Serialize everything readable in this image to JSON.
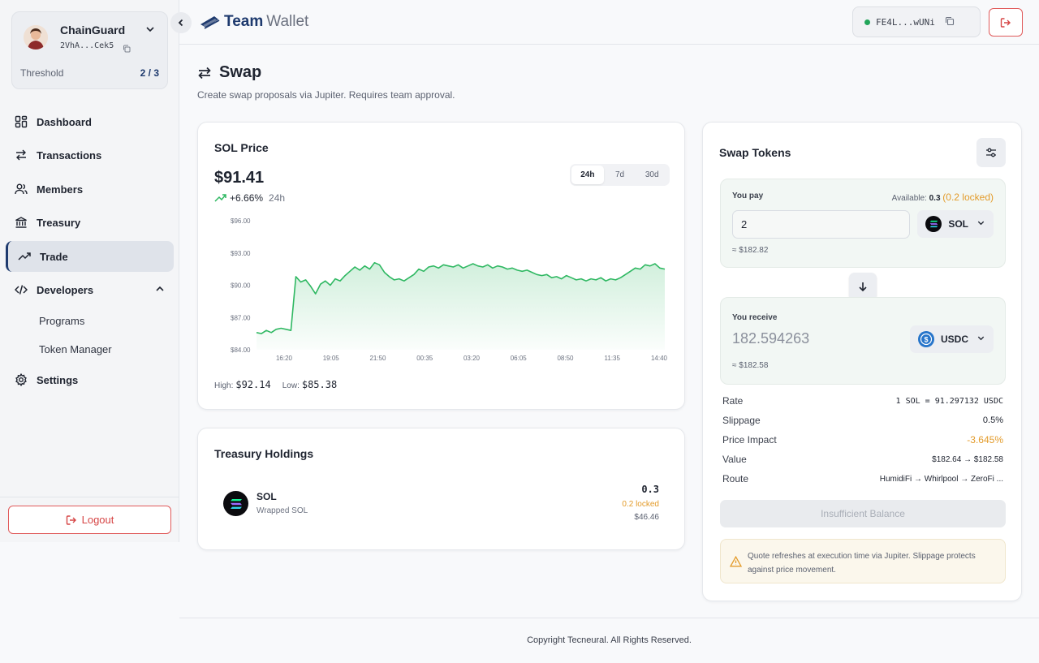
{
  "account": {
    "name": "ChainGuard",
    "address": "2VhA...Cek5",
    "threshold_label": "Threshold",
    "threshold_value": "2 / 3"
  },
  "nav": {
    "dashboard": "Dashboard",
    "transactions": "Transactions",
    "members": "Members",
    "treasury": "Treasury",
    "trade": "Trade",
    "developers": "Developers",
    "programs": "Programs",
    "token_manager": "Token Manager",
    "settings": "Settings",
    "logout": "Logout"
  },
  "header": {
    "brand_bold": "Team",
    "brand_light": "Wallet",
    "wallet_address": "FE4L...wUNi"
  },
  "page": {
    "title": "Swap",
    "subtitle": "Create swap proposals via Jupiter. Requires team approval."
  },
  "price_card": {
    "title": "SOL Price",
    "price": "$91.41",
    "change": "+6.66%",
    "period": "24h",
    "ranges": [
      "24h",
      "7d",
      "30d"
    ],
    "active_range": "24h",
    "high_label": "High:",
    "high": "$92.14",
    "low_label": "Low:",
    "low": "$85.38"
  },
  "chart_data": {
    "type": "area",
    "title": "",
    "xlabel": "",
    "ylabel": "",
    "ylim": [
      84,
      96
    ],
    "y_ticks": [
      "$96.00",
      "$93.00",
      "$90.00",
      "$87.00",
      "$84.00"
    ],
    "x_ticks": [
      "16:20",
      "19:05",
      "21:50",
      "00:35",
      "03:20",
      "06:05",
      "08:50",
      "11:35",
      "14:40"
    ],
    "series": [
      {
        "color": "#2fb862",
        "values": [
          85.6,
          85.5,
          85.8,
          85.6,
          85.9,
          86.0,
          85.9,
          85.8,
          90.8,
          90.3,
          90.5,
          89.9,
          89.2,
          90.1,
          90.4,
          90.0,
          90.6,
          90.4,
          90.9,
          91.3,
          91.7,
          91.4,
          91.8,
          91.5,
          92.1,
          91.9,
          91.2,
          90.8,
          90.5,
          90.6,
          90.4,
          90.7,
          91.0,
          91.5,
          91.3,
          91.7,
          91.8,
          91.6,
          91.9,
          91.8,
          91.7,
          91.9,
          91.6,
          91.8,
          92.0,
          91.8,
          91.7,
          91.9,
          91.6,
          91.8,
          91.7,
          91.5,
          91.6,
          91.4,
          91.3,
          91.4,
          91.2,
          91.0,
          90.9,
          91.0,
          90.7,
          90.8,
          90.6,
          90.9,
          90.7,
          90.5,
          90.6,
          90.4,
          90.6,
          90.5,
          90.7,
          90.4,
          90.6,
          90.5,
          90.7,
          91.0,
          91.3,
          91.6,
          91.5,
          91.9,
          91.8,
          92.0,
          91.6,
          91.5
        ]
      }
    ]
  },
  "holdings": {
    "title": "Treasury Holdings",
    "items": [
      {
        "symbol": "SOL",
        "name": "Wrapped SOL",
        "amount": "0.3",
        "locked": "0.2 locked",
        "usd": "$46.46"
      }
    ]
  },
  "swap": {
    "title": "Swap Tokens",
    "pay_label": "You pay",
    "available_label": "Available:",
    "available_value": "0.3",
    "available_locked": "(0.2 locked)",
    "pay_amount": "2",
    "pay_token": "SOL",
    "pay_usd": "≈ $182.82",
    "receive_label": "You receive",
    "receive_amount": "182.594263",
    "receive_token": "USDC",
    "receive_usd": "≈ $182.58",
    "rows": {
      "rate_k": "Rate",
      "rate_v": "1 SOL = 91.297132 USDC",
      "slippage_k": "Slippage",
      "slippage_v": "0.5%",
      "impact_k": "Price Impact",
      "impact_v": "-3.645%",
      "value_k": "Value",
      "value_v": "$182.64 → $182.58",
      "route_k": "Route",
      "route_v": "HumidiFi → Whirlpool → ZeroFi ..."
    },
    "submit_label": "Insufficient Balance",
    "notice": "Quote refreshes at execution time via Jupiter. Slippage protects against price movement."
  },
  "footer": {
    "copyright": "Copyright Tecneural. All Rights Reserved."
  },
  "colors": {
    "accent": "#1e3a6e",
    "positive": "#2fb862",
    "warning": "#e39b2a",
    "danger": "#d64545"
  }
}
